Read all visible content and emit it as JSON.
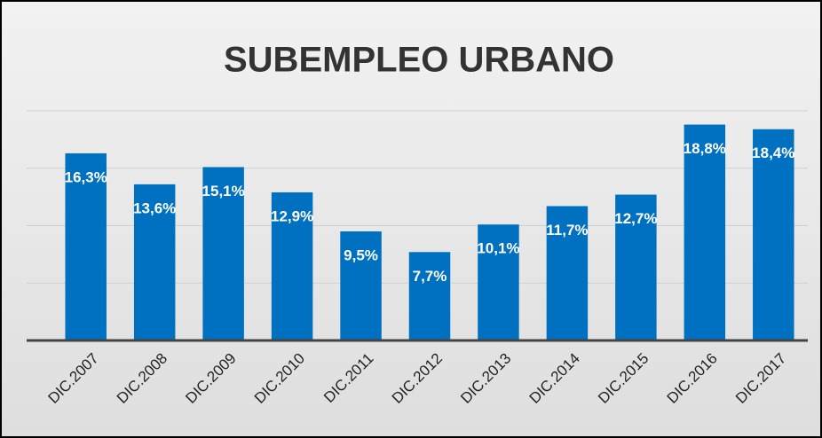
{
  "chart_data": {
    "type": "bar",
    "title": "SUBEMPLEO URBANO",
    "categories": [
      "DIC.2007",
      "DIC.2008",
      "DIC.2009",
      "DIC.2010",
      "DIC.2011",
      "DIC.2012",
      "DIC.2013",
      "DIC.2014",
      "DIC.2015",
      "DIC.2016",
      "DIC.2017"
    ],
    "values": [
      16.3,
      13.6,
      15.1,
      12.9,
      9.5,
      7.7,
      10.1,
      11.7,
      12.7,
      18.8,
      18.4
    ],
    "value_labels": [
      "16,3%",
      "13,6%",
      "15,1%",
      "12,9%",
      "9,5%",
      "7,7%",
      "10,1%",
      "11,7%",
      "12,7%",
      "18,8%",
      "18,4%"
    ],
    "color": "#0070c0",
    "ylim": [
      0,
      20
    ],
    "yticks": [
      0,
      5,
      10,
      15,
      20
    ],
    "grid": true
  }
}
